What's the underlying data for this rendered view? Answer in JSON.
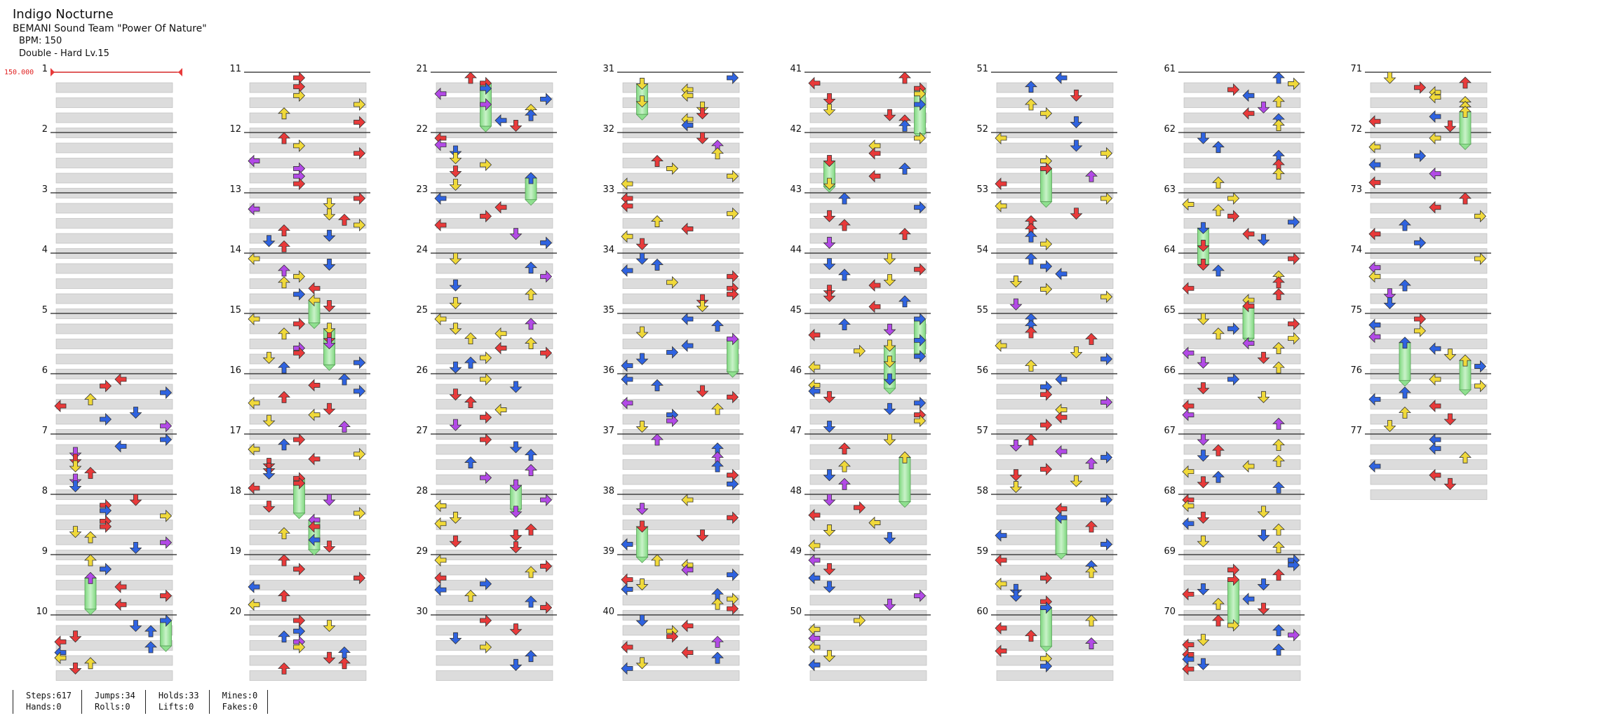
{
  "song": {
    "title": "Indigo Nocturne",
    "artist": "BEMANI Sound Team \"Power Of Nature\"",
    "bpm_text": "BPM: 150",
    "difficulty": "Double - Hard Lv.15"
  },
  "bpm_marker": {
    "label": "150.000",
    "color": "#e02020"
  },
  "colors": {
    "quarter": "#e83a3a",
    "eighth": "#2f63e0",
    "sixteenth": "#f0d93a",
    "triplet": "#b24ae6",
    "hold": "#8fe08f"
  },
  "measures": [
    1,
    2,
    3,
    4,
    5,
    6,
    7,
    8,
    9,
    10,
    11,
    12,
    13,
    14,
    15,
    16,
    17,
    18,
    19,
    20,
    21,
    22,
    23,
    24,
    25,
    26,
    27,
    28,
    29,
    30,
    31,
    32,
    33,
    34,
    35,
    36,
    37,
    38,
    39,
    40,
    41,
    42,
    43,
    44,
    45,
    46,
    47,
    48,
    49,
    50,
    51,
    52,
    53,
    54,
    55,
    56,
    57,
    58,
    59,
    60,
    61,
    62,
    63,
    64,
    65,
    66,
    67,
    68,
    69,
    70,
    71,
    72,
    73,
    74,
    75,
    76,
    77
  ],
  "stats": [
    {
      "top": "Steps:617",
      "bottom": "Hands:0"
    },
    {
      "top": "Jumps:34",
      "bottom": "Rolls:0"
    },
    {
      "top": "Holds:33",
      "bottom": "Lifts:0"
    },
    {
      "top": "Mines:0",
      "bottom": "Fakes:0"
    }
  ]
}
